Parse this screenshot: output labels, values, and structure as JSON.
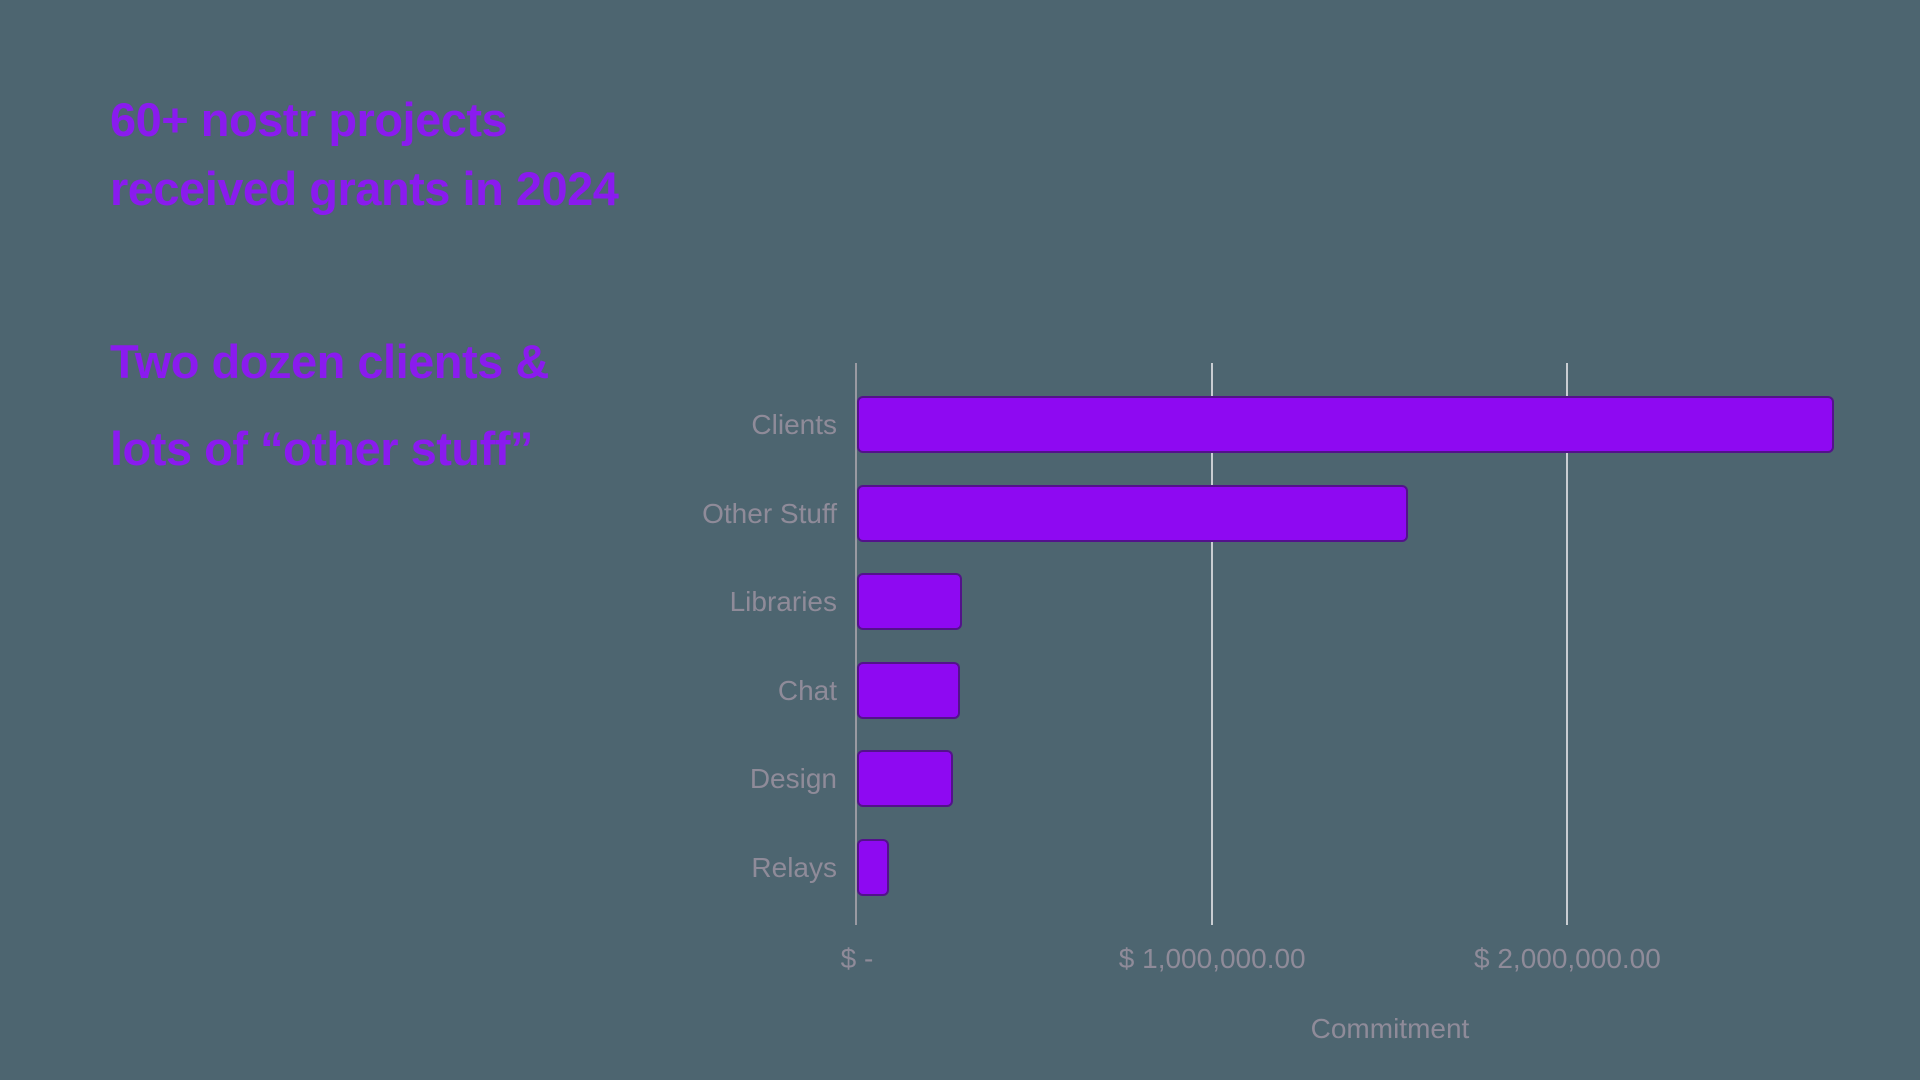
{
  "page": {
    "background_color": "#4d6570",
    "accent_color": "#8a1bee",
    "muted_label_color": "#8f8b99",
    "axis_line_color": "#9a9aa2",
    "gridline_color": "#c9cdd2"
  },
  "heading": {
    "line1": "60+ nostr projects",
    "line2": "received grants in 2024"
  },
  "subheading": {
    "line1": "Two dozen clients &",
    "line2": "lots of “other stuff”"
  },
  "chart_data": {
    "type": "bar",
    "orientation": "horizontal",
    "title": "",
    "xlabel": "Commitment",
    "ylabel": "",
    "categories": [
      "Clients",
      "Other Stuff",
      "Libraries",
      "Chat",
      "Design",
      "Relays"
    ],
    "values": [
      2750000,
      1550000,
      295000,
      290000,
      270000,
      90000
    ],
    "x_ticks": [
      {
        "value": 0,
        "label": "$ -"
      },
      {
        "value": 1000000,
        "label": "$ 1,000,000.00"
      },
      {
        "value": 2000000,
        "label": "$ 2,000,000.00"
      }
    ],
    "xlim": [
      0,
      2880000
    ],
    "grid": true,
    "legend": false,
    "bar_color": "#8e09f2"
  }
}
